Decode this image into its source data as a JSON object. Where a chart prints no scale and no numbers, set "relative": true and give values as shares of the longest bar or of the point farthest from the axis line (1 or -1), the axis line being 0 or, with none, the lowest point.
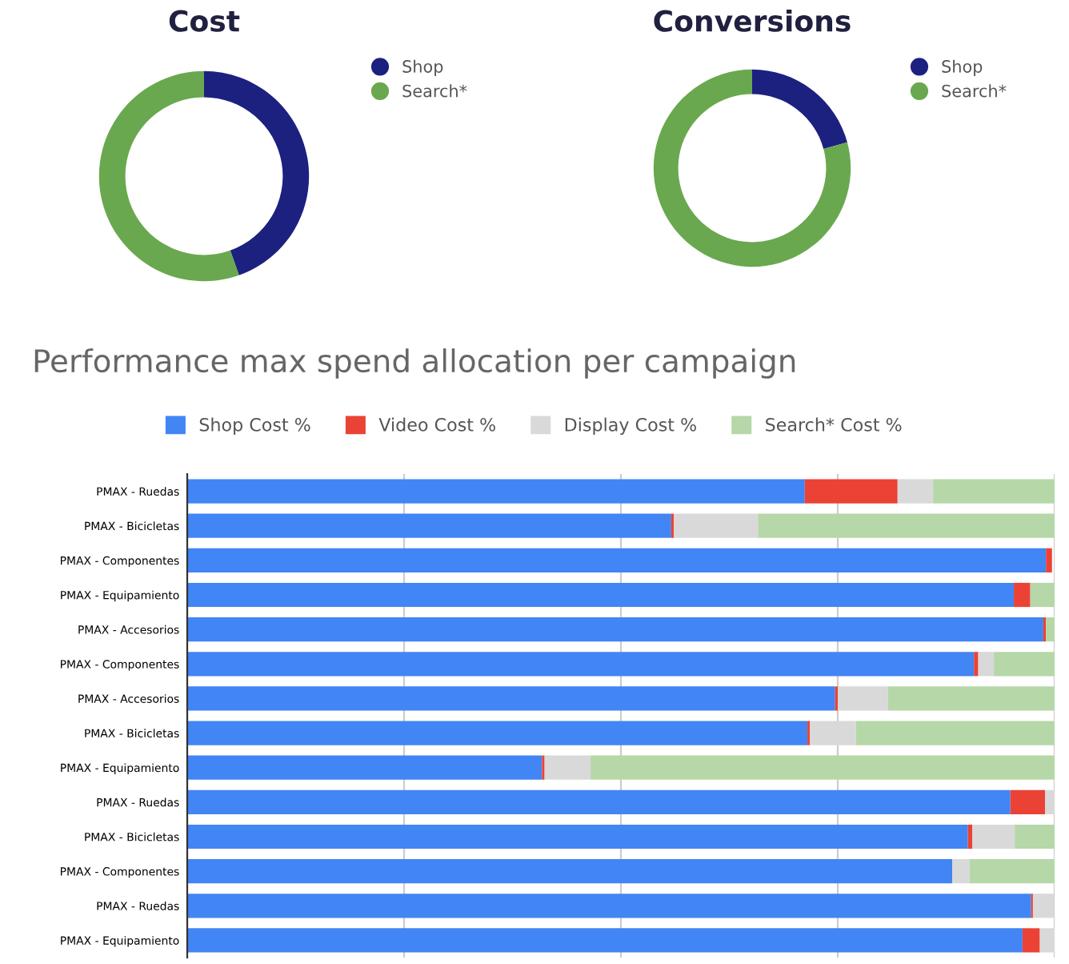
{
  "chart_data": [
    {
      "type": "donut",
      "title": "Cost",
      "categories": [
        "Shop",
        "Search*"
      ],
      "values": [
        44.6,
        55.4
      ],
      "colors": [
        "#1c2180",
        "#6aa84f"
      ],
      "legend": "top right"
    },
    {
      "type": "donut",
      "title": "Conversions",
      "categories": [
        "Shop",
        "Search*"
      ],
      "values": [
        20.8,
        79.2
      ],
      "colors": [
        "#1c2180",
        "#6aa84f"
      ],
      "legend": "top right"
    },
    {
      "type": "bar",
      "orientation": "horizontal",
      "stacked": true,
      "relative": true,
      "title": "Performance max spend allocation per campaign",
      "legend": "top",
      "grid": "x",
      "categories": [
        "PMAX - Ruedas",
        "PMAX - Bicicletas",
        "PMAX - Componentes",
        "PMAX - Equipamiento",
        "PMAX - Accesorios",
        "PMAX - Componentes",
        "PMAX - Accesorios",
        "PMAX - Bicicletas",
        "PMAX - Equipamiento",
        "PMAX - Ruedas",
        "PMAX - Bicicletas",
        "PMAX - Componentes",
        "PMAX - Ruedas",
        "PMAX - Equipamiento"
      ],
      "series": [
        {
          "name": "Shop Cost %",
          "color": "#4285f4",
          "values": [
            0.712,
            0.558,
            0.99,
            0.953,
            0.987,
            0.907,
            0.747,
            0.715,
            0.409,
            0.949,
            0.9,
            0.882,
            0.973,
            0.963
          ]
        },
        {
          "name": "Video Cost %",
          "color": "#ea4335",
          "values": [
            0.107,
            0.003,
            0.007,
            0.019,
            0.003,
            0.005,
            0.003,
            0.003,
            0.003,
            0.04,
            0.005,
            0,
            0.002,
            0.02
          ]
        },
        {
          "name": "Display Cost %",
          "color": "#d9d9d9",
          "values": [
            0.041,
            0.097,
            0,
            0,
            0,
            0.018,
            0.058,
            0.053,
            0.053,
            0.011,
            0.049,
            0.02,
            0.024,
            0.017
          ]
        },
        {
          "name": "Search* Cost %",
          "color": "#b6d7a8",
          "values": [
            0.14,
            0.342,
            null,
            0.028,
            0.01,
            0.07,
            0.192,
            0.229,
            0.535,
            0,
            0.046,
            0.098,
            null,
            0
          ]
        }
      ]
    }
  ]
}
